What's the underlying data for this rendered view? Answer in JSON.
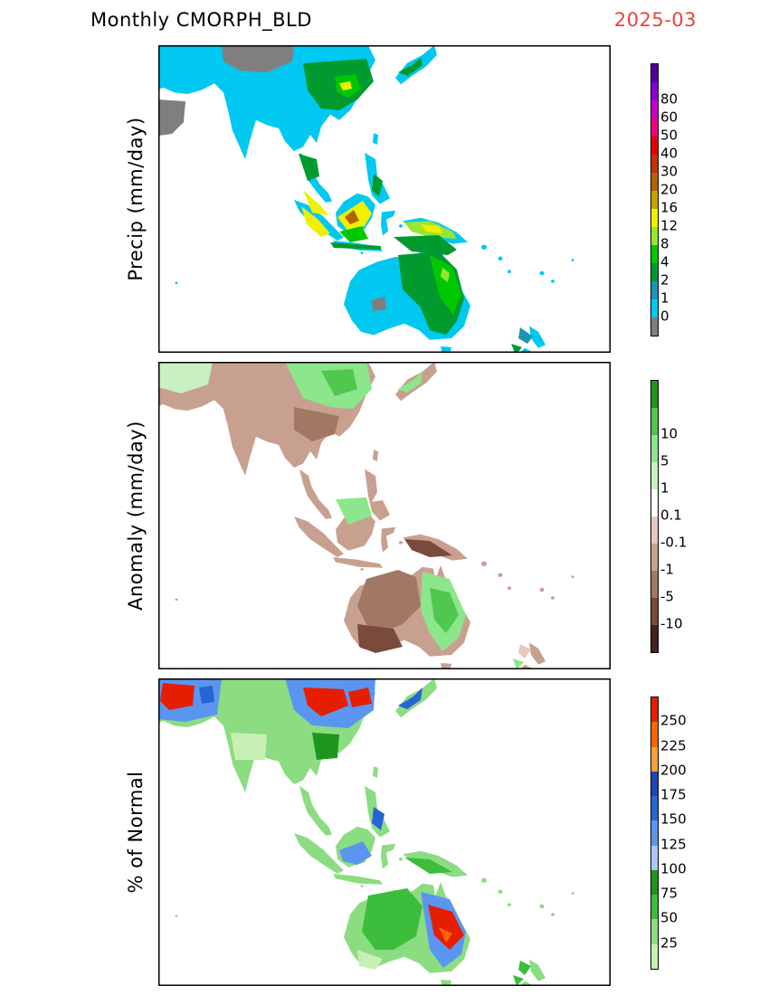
{
  "header": {
    "left": "Monthly CMORPH_BLD",
    "right": "2025-03",
    "right_color": "#e8453c"
  },
  "panels": [
    {
      "title": "Precip (mm/day)",
      "colors": [
        "#7f7f7f",
        "#00c8f0",
        "#1e94b4",
        "#009a2e",
        "#00c800",
        "#96e632",
        "#f0f000",
        "#c8a000",
        "#b46400",
        "#c83200",
        "#e60000",
        "#f0007a",
        "#c800c8",
        "#8a00d2",
        "#5000a0"
      ],
      "labels": [
        "0",
        "1",
        "2",
        "4",
        "8",
        "12",
        "16",
        "20",
        "30",
        "40",
        "50",
        "60",
        "80"
      ]
    },
    {
      "title": "Anomaly (mm/day)",
      "colors": [
        "#46231e",
        "#7a4a3c",
        "#a07864",
        "#c8a090",
        "#e6c8be",
        "#ffffff",
        "#c8f0c0",
        "#8ce68c",
        "#50c850",
        "#1e961e"
      ],
      "labels": [
        "-10",
        "-5",
        "-1",
        "-0.1",
        "0.1",
        "1",
        "5",
        "10"
      ]
    },
    {
      "title": "% of Normal",
      "colors": [
        "#c8f0b4",
        "#8cdc82",
        "#3cbe3c",
        "#1e961e",
        "#aac8ff",
        "#5a96f0",
        "#2864d2",
        "#1e46b4",
        "#ffa03c",
        "#ff6400",
        "#e61e00"
      ],
      "labels": [
        "25",
        "50",
        "75",
        "100",
        "125",
        "150",
        "175",
        "200",
        "225",
        "250"
      ]
    }
  ]
}
